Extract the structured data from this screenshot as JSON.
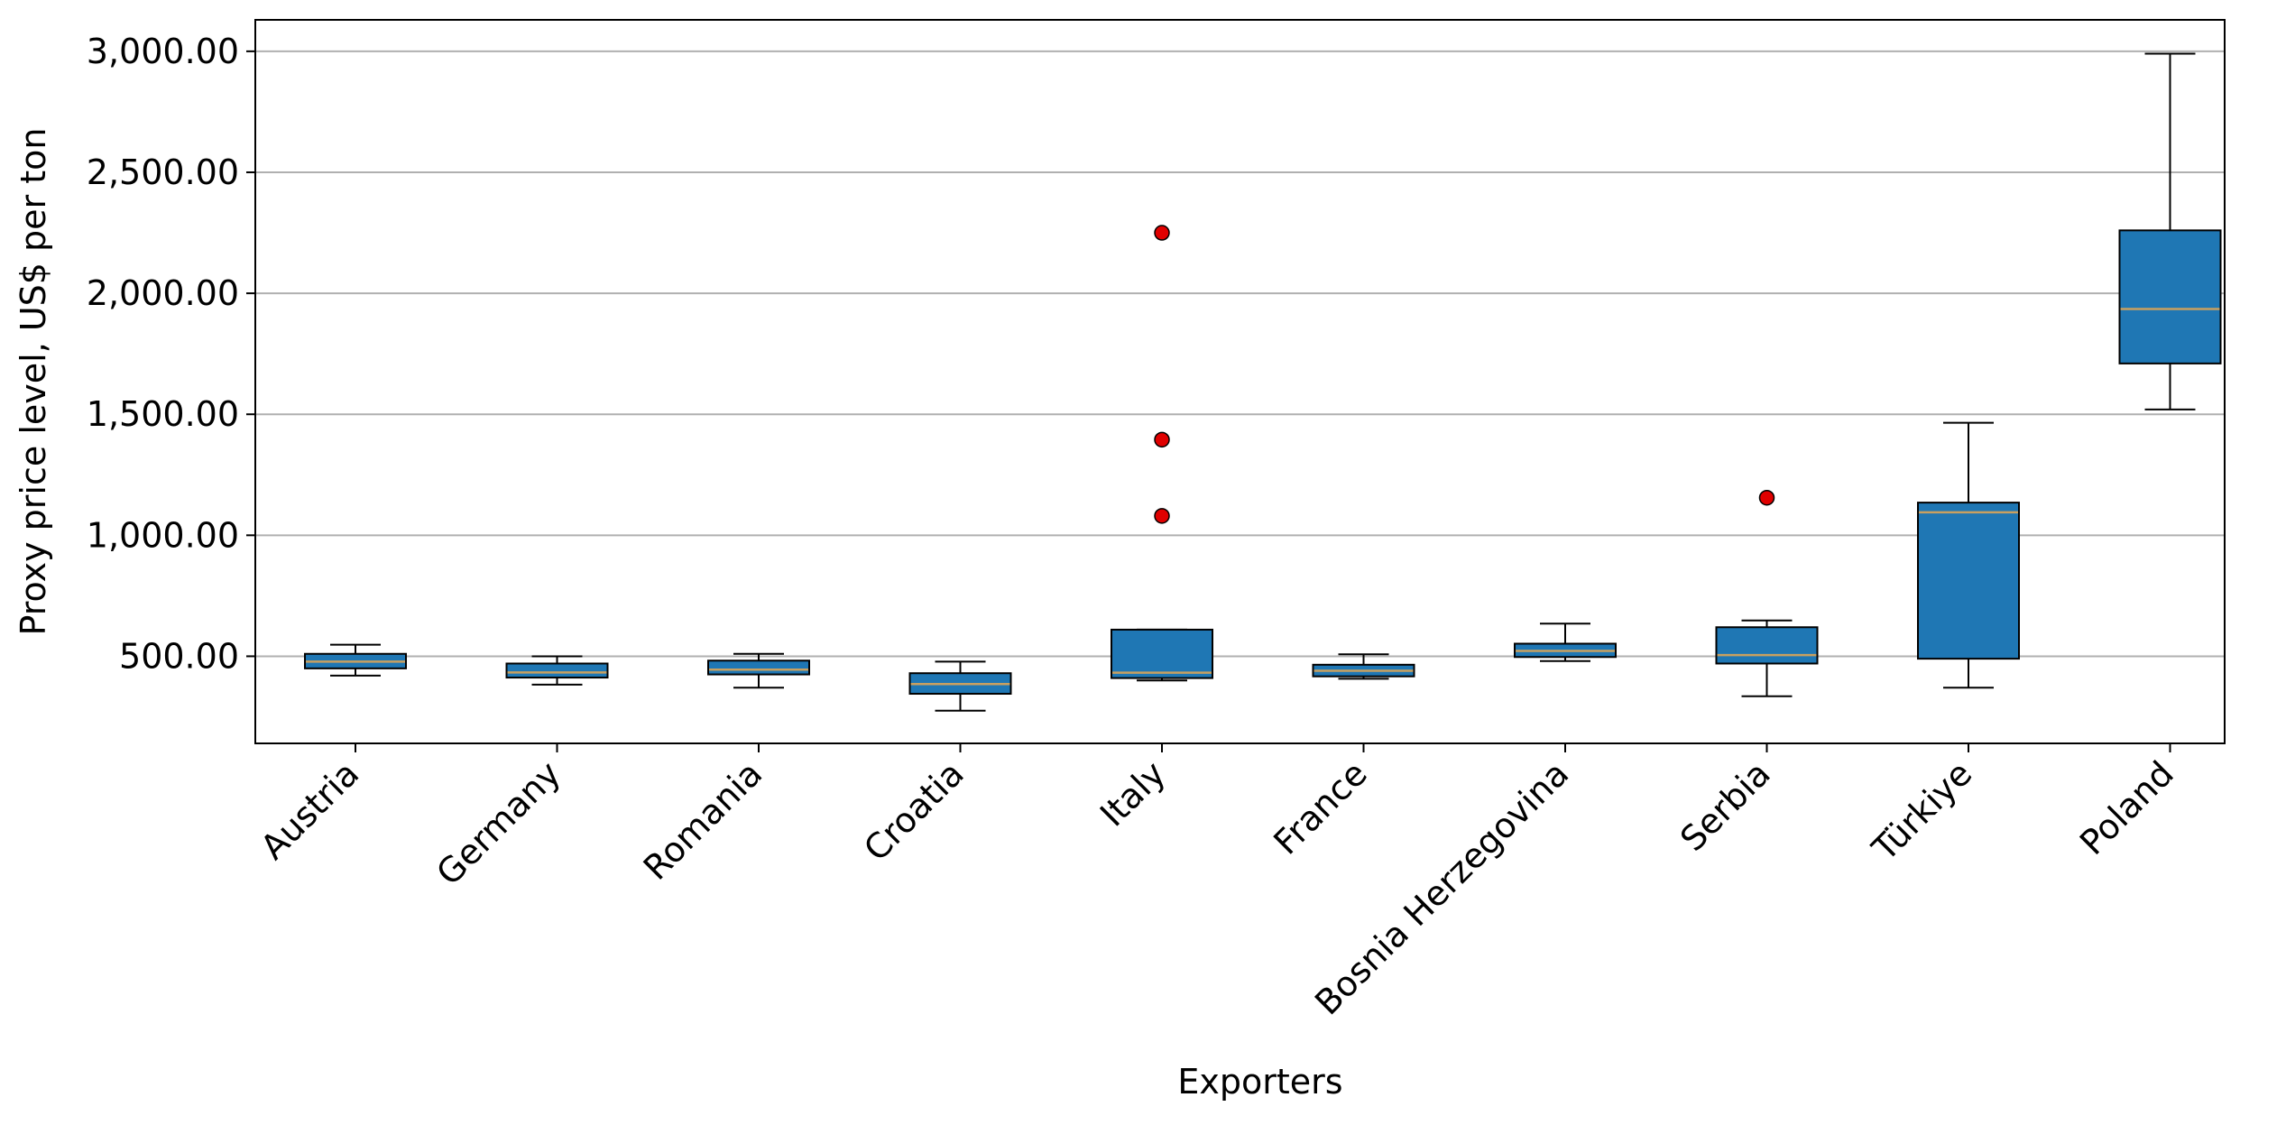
{
  "chart_data": {
    "type": "box",
    "title": "",
    "xlabel": "Exporters",
    "ylabel": "Proxy price level, US$ per ton",
    "ylim": [
      140,
      3130
    ],
    "yticks": [
      500,
      1000,
      1500,
      2000,
      2500,
      3000
    ],
    "ytick_labels": [
      "500.00",
      "1,000.00",
      "1,500.00",
      "2,000.00",
      "2,500.00",
      "3,000.00"
    ],
    "grid": "horizontal",
    "legend": "none",
    "categories": [
      "Austria",
      "Germany",
      "Romania",
      "Croatia",
      "Italy",
      "France",
      "Bosnia Herzegovina",
      "Serbia",
      "Türkiye",
      "Poland"
    ],
    "boxes": [
      {
        "category": "Austria",
        "whisker_low": 420,
        "q1": 450,
        "median": 478,
        "q3": 510,
        "whisker_high": 548,
        "outliers": []
      },
      {
        "category": "Germany",
        "whisker_low": 383,
        "q1": 412,
        "median": 433,
        "q3": 470,
        "whisker_high": 500,
        "outliers": []
      },
      {
        "category": "Romania",
        "whisker_low": 370,
        "q1": 425,
        "median": 445,
        "q3": 482,
        "whisker_high": 510,
        "outliers": []
      },
      {
        "category": "Croatia",
        "whisker_low": 275,
        "q1": 345,
        "median": 385,
        "q3": 430,
        "whisker_high": 478,
        "outliers": []
      },
      {
        "category": "Italy",
        "whisker_low": 400,
        "q1": 410,
        "median": 432,
        "q3": 610,
        "whisker_high": 610,
        "outliers": [
          2250,
          1395,
          1080
        ]
      },
      {
        "category": "France",
        "whisker_low": 407,
        "q1": 417,
        "median": 440,
        "q3": 465,
        "whisker_high": 508,
        "outliers": []
      },
      {
        "category": "Bosnia Herzegovina",
        "whisker_low": 480,
        "q1": 497,
        "median": 522,
        "q3": 552,
        "whisker_high": 635,
        "outliers": []
      },
      {
        "category": "Serbia",
        "whisker_low": 335,
        "q1": 470,
        "median": 505,
        "q3": 620,
        "whisker_high": 648,
        "outliers": [
          1155
        ]
      },
      {
        "category": "Türkiye",
        "whisker_low": 370,
        "q1": 490,
        "median": 1095,
        "q3": 1135,
        "whisker_high": 1465,
        "outliers": []
      },
      {
        "category": "Poland",
        "whisker_low": 1520,
        "q1": 1710,
        "median": 1935,
        "q3": 2260,
        "whisker_high": 2990,
        "outliers": []
      }
    ],
    "colors": {
      "box_fill": "#1f77b4",
      "median": "#c8a060",
      "outlier": "#e00000",
      "grid": "#b0b0b0",
      "edge": "#000000"
    }
  }
}
